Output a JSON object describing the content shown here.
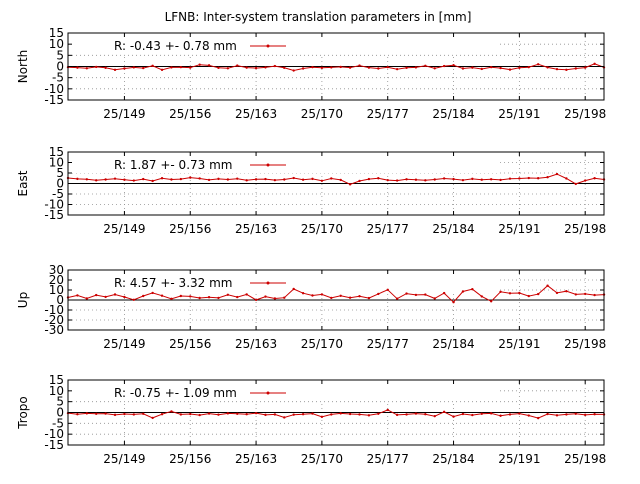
{
  "title": "LFNB: Inter-system translation parameters in [mm]",
  "x_ticks": [
    "25/149",
    "25/156",
    "25/163",
    "25/170",
    "25/177",
    "25/184",
    "25/191",
    "25/198"
  ],
  "colors": {
    "series": "#cc0000",
    "grid": "#909090",
    "zero": "#000000"
  },
  "chart_data": [
    {
      "type": "line",
      "ylabel": "North",
      "legend": "R:  -0.43 +- 0.78 mm",
      "ylim": [
        -15,
        15
      ],
      "yticks": [
        15,
        10,
        5,
        0,
        -5,
        -10,
        -15
      ],
      "x_range": [
        143,
        200
      ],
      "x": [
        143,
        144,
        145,
        146,
        147,
        148,
        149,
        150,
        151,
        152,
        153,
        154,
        155,
        156,
        157,
        158,
        159,
        160,
        161,
        162,
        163,
        164,
        165,
        166,
        167,
        168,
        169,
        170,
        171,
        172,
        173,
        174,
        175,
        176,
        177,
        178,
        179,
        180,
        181,
        182,
        183,
        184,
        185,
        186,
        187,
        188,
        189,
        190,
        191,
        192,
        193,
        194,
        195,
        196,
        197,
        198,
        199,
        200
      ],
      "values": [
        -0.3,
        -0.5,
        -0.8,
        -0.2,
        -0.6,
        -1.5,
        -0.9,
        -0.4,
        -0.7,
        0.3,
        -1.5,
        -0.4,
        -0.3,
        -0.5,
        0.8,
        0.5,
        -0.6,
        -0.8,
        0.4,
        -0.5,
        -0.7,
        -0.4,
        0.2,
        -0.6,
        -1.8,
        -0.9,
        -0.3,
        -0.6,
        -0.4,
        -0.2,
        -0.5,
        0.4,
        -0.5,
        -0.9,
        -0.3,
        -1.2,
        -0.6,
        -0.4,
        0.3,
        -0.8,
        0.2,
        0.6,
        -0.9,
        -0.5,
        -1.1,
        -0.3,
        -0.7,
        -1.4,
        -0.6,
        -0.3,
        1.0,
        -0.4,
        -1.2,
        -1.5,
        -0.9,
        -0.5,
        1.2,
        -0.4
      ]
    },
    {
      "type": "line",
      "ylabel": "East",
      "legend": "R:   1.87 +- 0.73 mm",
      "ylim": [
        -15,
        15
      ],
      "yticks": [
        15,
        10,
        5,
        0,
        -5,
        -10,
        -15
      ],
      "x_range": [
        143,
        200
      ],
      "x": [
        143,
        144,
        145,
        146,
        147,
        148,
        149,
        150,
        151,
        152,
        153,
        154,
        155,
        156,
        157,
        158,
        159,
        160,
        161,
        162,
        163,
        164,
        165,
        166,
        167,
        168,
        169,
        170,
        171,
        172,
        173,
        174,
        175,
        176,
        177,
        178,
        179,
        180,
        181,
        182,
        183,
        184,
        185,
        186,
        187,
        188,
        189,
        190,
        191,
        192,
        193,
        194,
        195,
        196,
        197,
        198,
        199,
        200
      ],
      "values": [
        2.6,
        2.2,
        2.0,
        1.5,
        1.9,
        2.3,
        1.8,
        1.4,
        2.1,
        1.2,
        2.5,
        1.9,
        2.1,
        2.8,
        2.4,
        1.7,
        2.2,
        1.9,
        2.3,
        1.5,
        2.0,
        2.1,
        1.6,
        1.9,
        2.6,
        1.8,
        2.2,
        1.3,
        2.4,
        1.7,
        -0.4,
        1.2,
        2.1,
        2.5,
        1.6,
        1.4,
        2.0,
        1.8,
        1.5,
        1.9,
        2.4,
        2.1,
        1.6,
        2.2,
        1.8,
        2.0,
        1.7,
        2.3,
        2.4,
        2.6,
        2.5,
        3.0,
        4.5,
        2.4,
        -0.2,
        1.4,
        2.5,
        1.9
      ]
    },
    {
      "type": "line",
      "ylabel": "Up",
      "legend": "R:   4.57 +- 3.32 mm",
      "ylim": [
        -30,
        30
      ],
      "yticks": [
        30,
        20,
        10,
        0,
        -10,
        -20,
        -30
      ],
      "x_range": [
        143,
        200
      ],
      "x": [
        143,
        144,
        145,
        146,
        147,
        148,
        149,
        150,
        151,
        152,
        153,
        154,
        155,
        156,
        157,
        158,
        159,
        160,
        161,
        162,
        163,
        164,
        165,
        166,
        167,
        168,
        169,
        170,
        171,
        172,
        173,
        174,
        175,
        176,
        177,
        178,
        179,
        180,
        181,
        182,
        183,
        184,
        185,
        186,
        187,
        188,
        189,
        190,
        191,
        192,
        193,
        194,
        195,
        196,
        197,
        198,
        199,
        200
      ],
      "values": [
        2.5,
        4.6,
        1.5,
        4.9,
        3.1,
        5.5,
        3.0,
        0.2,
        4.0,
        7.1,
        4.3,
        1.2,
        4.0,
        3.6,
        2.0,
        2.8,
        2.1,
        5.2,
        2.9,
        5.6,
        0.1,
        3.4,
        1.5,
        2.3,
        11.0,
        6.8,
        4.5,
        5.6,
        2.1,
        4.2,
        2.3,
        3.8,
        1.9,
        6.1,
        10.2,
        1.3,
        6.4,
        5.1,
        5.4,
        1.6,
        6.9,
        -2.2,
        8.5,
        10.8,
        3.6,
        -1.3,
        8.2,
        6.7,
        7.0,
        3.9,
        5.9,
        14.3,
        7.1,
        8.8,
        5.6,
        6.1,
        4.9,
        5.4
      ]
    },
    {
      "type": "line",
      "ylabel": "Tropo",
      "legend": "R:  -0.75 +- 1.09 mm",
      "ylim": [
        -15,
        15
      ],
      "yticks": [
        15,
        10,
        5,
        0,
        -5,
        -10,
        -15
      ],
      "x_range": [
        143,
        200
      ],
      "x": [
        143,
        144,
        145,
        146,
        147,
        148,
        149,
        150,
        151,
        152,
        153,
        154,
        155,
        156,
        157,
        158,
        159,
        160,
        161,
        162,
        163,
        164,
        165,
        166,
        167,
        168,
        169,
        170,
        171,
        172,
        173,
        174,
        175,
        176,
        177,
        178,
        179,
        180,
        181,
        182,
        183,
        184,
        185,
        186,
        187,
        188,
        189,
        190,
        191,
        192,
        193,
        194,
        195,
        196,
        197,
        198,
        199,
        200
      ],
      "values": [
        -0.3,
        -0.8,
        -0.4,
        -0.6,
        -0.5,
        -1.1,
        -0.7,
        -0.9,
        -0.6,
        -2.5,
        -0.8,
        0.5,
        -0.9,
        -0.7,
        -1.2,
        -0.5,
        -1.0,
        -0.4,
        -0.6,
        -0.8,
        -0.3,
        -1.1,
        -0.9,
        -2.3,
        -1.0,
        -0.8,
        -0.5,
        -2.0,
        -0.9,
        -0.4,
        -0.7,
        -0.9,
        -1.3,
        -0.6,
        1.2,
        -1.1,
        -0.9,
        -0.5,
        -0.8,
        -1.7,
        0.3,
        -1.9,
        -0.7,
        -1.2,
        -0.6,
        -0.4,
        -1.5,
        -0.9,
        -0.5,
        -1.4,
        -2.6,
        -0.7,
        -1.3,
        -0.9,
        -0.6,
        -1.1,
        -0.8,
        -0.9
      ]
    }
  ]
}
